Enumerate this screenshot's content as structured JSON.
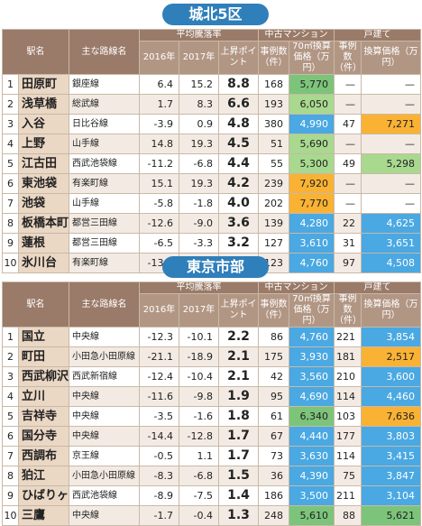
{
  "sections": [
    {
      "title": "城北5区",
      "headers": {
        "station": "駅名",
        "line": "主な路線名",
        "avg_rate": "平均騰落率",
        "y2016": "2016年",
        "y2017": "2017年",
        "points": "上昇ポイント",
        "mansion": "中古マンション",
        "cases": "事例数（件）",
        "price70": "70㎡換算価格（万円）",
        "house": "戸建て",
        "h_cases": "事例数（件）",
        "h_price": "換算価格（万円）"
      },
      "rows": [
        {
          "rank": "1",
          "station": "田原町",
          "line": "銀座線",
          "r2016": "6.4",
          "r2017": "15.2",
          "points": "8.8",
          "cases": "168",
          "price": "5,770",
          "h_cases": "—",
          "h_price": "—",
          "price_hl": "green",
          "h_hl": ""
        },
        {
          "rank": "2",
          "station": "浅草橋",
          "line": "総武線",
          "r2016": "1.7",
          "r2017": "8.3",
          "points": "6.6",
          "cases": "193",
          "price": "6,050",
          "h_cases": "—",
          "h_price": "—",
          "price_hl": "green2",
          "h_hl": ""
        },
        {
          "rank": "3",
          "station": "入谷",
          "line": "日比谷線",
          "r2016": "-3.9",
          "r2017": "0.9",
          "points": "4.8",
          "cases": "380",
          "price": "4,990",
          "h_cases": "47",
          "h_price": "7,271",
          "price_hl": "blue",
          "h_hl": "orange"
        },
        {
          "rank": "4",
          "station": "上野",
          "line": "山手線",
          "r2016": "14.8",
          "r2017": "19.3",
          "points": "4.5",
          "cases": "51",
          "price": "5,690",
          "h_cases": "—",
          "h_price": "—",
          "price_hl": "green2",
          "h_hl": ""
        },
        {
          "rank": "5",
          "station": "江古田",
          "line": "西武池袋線",
          "r2016": "-11.2",
          "r2017": "-6.8",
          "points": "4.4",
          "cases": "55",
          "price": "5,300",
          "h_cases": "49",
          "h_price": "5,298",
          "price_hl": "green2",
          "h_hl": "green2"
        },
        {
          "rank": "6",
          "station": "東池袋",
          "line": "有楽町線",
          "r2016": "15.1",
          "r2017": "19.3",
          "points": "4.2",
          "cases": "239",
          "price": "7,920",
          "h_cases": "—",
          "h_price": "—",
          "price_hl": "orange",
          "h_hl": ""
        },
        {
          "rank": "7",
          "station": "池袋",
          "line": "山手線",
          "r2016": "-5.8",
          "r2017": "-1.8",
          "points": "4.0",
          "cases": "202",
          "price": "7,770",
          "h_cases": "—",
          "h_price": "—",
          "price_hl": "orange",
          "h_hl": ""
        },
        {
          "rank": "8",
          "station": "板橋本町",
          "line": "都営三田線",
          "r2016": "-12.6",
          "r2017": "-9.0",
          "points": "3.6",
          "cases": "139",
          "price": "4,280",
          "h_cases": "22",
          "h_price": "4,625",
          "price_hl": "blue",
          "h_hl": "blue"
        },
        {
          "rank": "9",
          "station": "蓮根",
          "line": "都営三田線",
          "r2016": "-6.5",
          "r2017": "-3.3",
          "points": "3.2",
          "cases": "127",
          "price": "3,610",
          "h_cases": "31",
          "h_price": "3,651",
          "price_hl": "blue",
          "h_hl": "blue"
        },
        {
          "rank": "10",
          "station": "氷川台",
          "line": "有楽町線",
          "r2016": "-13.5",
          "r2017": "-10.4",
          "points": "3.1",
          "cases": "123",
          "price": "4,760",
          "h_cases": "97",
          "h_price": "4,508",
          "price_hl": "blue",
          "h_hl": "blue"
        }
      ]
    },
    {
      "title": "東京市部",
      "headers": {
        "station": "駅名",
        "line": "主な路線名",
        "avg_rate": "平均騰落率",
        "y2016": "2016年",
        "y2017": "2017年",
        "points": "上昇ポイント",
        "mansion": "中古マンション",
        "cases": "事例数（件）",
        "price70": "70㎡換算価格（万円）",
        "house": "戸建て",
        "h_cases": "事例数（件）",
        "h_price": "換算価格（万円）"
      },
      "rows": [
        {
          "rank": "1",
          "station": "国立",
          "line": "中央線",
          "r2016": "-12.3",
          "r2017": "-10.1",
          "points": "2.2",
          "cases": "86",
          "price": "4,760",
          "h_cases": "221",
          "h_price": "3,854",
          "price_hl": "blue",
          "h_hl": "blue"
        },
        {
          "rank": "2",
          "station": "町田",
          "line": "小田急小田原線",
          "r2016": "-21.1",
          "r2017": "-18.9",
          "points": "2.1",
          "cases": "175",
          "price": "3,930",
          "h_cases": "181",
          "h_price": "2,517",
          "price_hl": "blue",
          "h_hl": "orange"
        },
        {
          "rank": "3",
          "station": "西武柳沢",
          "line": "西武新宿線",
          "r2016": "-12.4",
          "r2017": "-10.4",
          "points": "2.1",
          "cases": "42",
          "price": "3,560",
          "h_cases": "210",
          "h_price": "3,600",
          "price_hl": "blue",
          "h_hl": "blue"
        },
        {
          "rank": "4",
          "station": "立川",
          "line": "中央線",
          "r2016": "-11.6",
          "r2017": "-9.8",
          "points": "1.9",
          "cases": "95",
          "price": "4,690",
          "h_cases": "114",
          "h_price": "4,460",
          "price_hl": "blue",
          "h_hl": "blue"
        },
        {
          "rank": "5",
          "station": "吉祥寺",
          "line": "中央線",
          "r2016": "-3.5",
          "r2017": "-1.6",
          "points": "1.8",
          "cases": "61",
          "price": "6,340",
          "h_cases": "103",
          "h_price": "7,636",
          "price_hl": "green",
          "h_hl": "orange"
        },
        {
          "rank": "6",
          "station": "国分寺",
          "line": "中央線",
          "r2016": "-14.4",
          "r2017": "-12.8",
          "points": "1.7",
          "cases": "67",
          "price": "4,440",
          "h_cases": "177",
          "h_price": "3,803",
          "price_hl": "blue",
          "h_hl": "blue"
        },
        {
          "rank": "7",
          "station": "西調布",
          "line": "京王線",
          "r2016": "-0.5",
          "r2017": "1.1",
          "points": "1.7",
          "cases": "73",
          "price": "3,630",
          "h_cases": "114",
          "h_price": "3,415",
          "price_hl": "blue",
          "h_hl": "blue"
        },
        {
          "rank": "8",
          "station": "狛江",
          "line": "小田急小田原線",
          "r2016": "-8.3",
          "r2017": "-6.8",
          "points": "1.5",
          "cases": "36",
          "price": "4,390",
          "h_cases": "75",
          "h_price": "3,847",
          "price_hl": "blue",
          "h_hl": "blue"
        },
        {
          "rank": "9",
          "station": "ひばりヶ丘",
          "line": "西武池袋線",
          "r2016": "-8.9",
          "r2017": "-7.5",
          "points": "1.4",
          "cases": "186",
          "price": "3,500",
          "h_cases": "211",
          "h_price": "3,104",
          "price_hl": "blue",
          "h_hl": "blue"
        },
        {
          "rank": "10",
          "station": "三鷹",
          "line": "中央線",
          "r2016": "-1.7",
          "r2017": "-0.4",
          "points": "1.3",
          "cases": "248",
          "price": "5,610",
          "h_cases": "88",
          "h_price": "5,621",
          "price_hl": "green",
          "h_hl": "green"
        }
      ]
    }
  ]
}
